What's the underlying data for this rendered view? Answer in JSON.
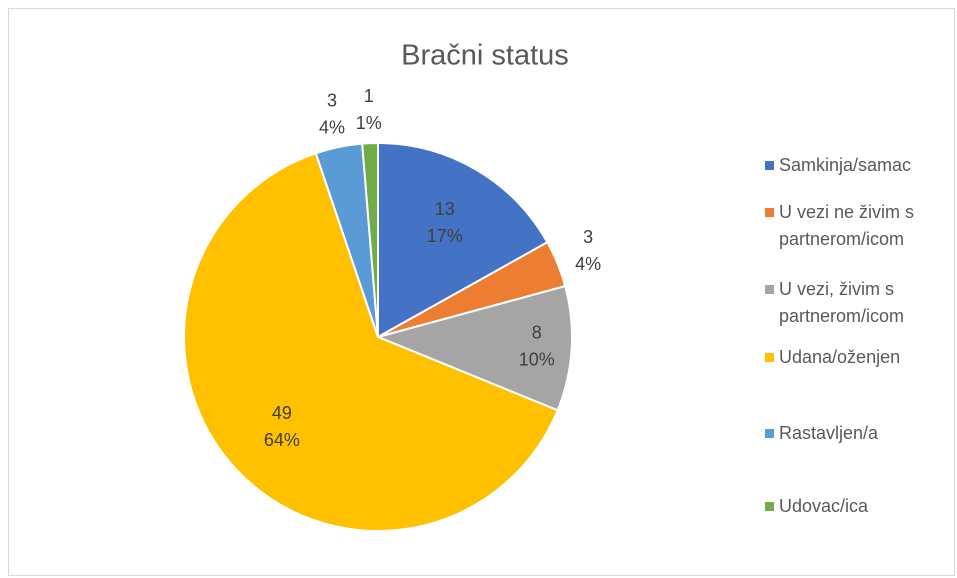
{
  "chart_data": {
    "type": "pie",
    "title": "Bračni status",
    "categories": [
      "Samkinja/samac",
      "U vezi ne živim s partnerom/icom",
      "U vezi, živim s partnerom/icom",
      "Udana/oženjen",
      "Rastavljen/a",
      "Udovac/ica"
    ],
    "values": [
      13,
      3,
      8,
      49,
      3,
      1
    ],
    "percent_labels": [
      "17%",
      "4%",
      "10%",
      "64%",
      "4%",
      "1%"
    ],
    "colors": [
      "#4472c4",
      "#ed7d31",
      "#a5a5a5",
      "#ffc000",
      "#5b9bd5",
      "#70ad47"
    ],
    "legend": "right"
  }
}
